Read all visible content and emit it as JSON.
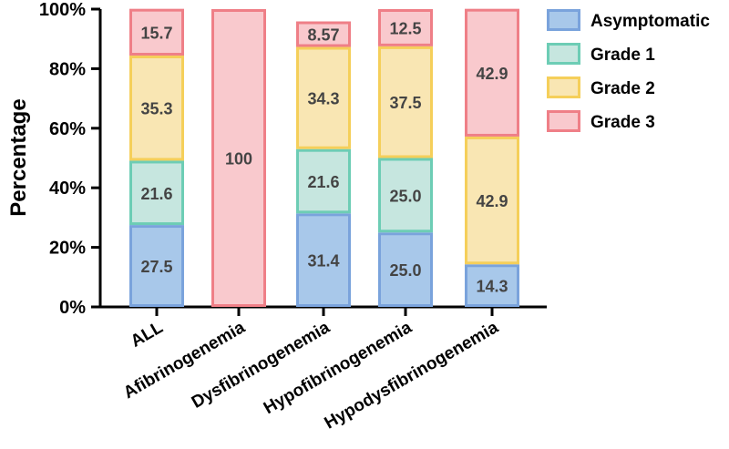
{
  "chart_data": {
    "type": "bar",
    "stacked": true,
    "ylabel": "Percentage",
    "xlabel": "",
    "ylim": [
      0,
      100
    ],
    "ytick_labels": [
      "0%",
      "20%",
      "40%",
      "60%",
      "80%",
      "100%"
    ],
    "categories": [
      "ALL",
      "Afibrinogenemia",
      "Dysfibrinogenemia",
      "Hypofibrinogenemia",
      "Hypodysfibrinogenemia"
    ],
    "series": [
      {
        "name": "Asymptomatic",
        "fill": "#a8c8ea",
        "stroke": "#7aa3dc",
        "values": [
          27.5,
          0,
          31.4,
          25.0,
          14.3
        ],
        "labels": [
          "27.5",
          "",
          "31.4",
          "25.0",
          "14.3"
        ]
      },
      {
        "name": "Grade 1",
        "fill": "#c6e6df",
        "stroke": "#6dcdb5",
        "values": [
          21.6,
          0,
          21.6,
          25.0,
          0
        ],
        "labels": [
          "21.6",
          "",
          "21.6",
          "25.0",
          ""
        ]
      },
      {
        "name": "Grade 2",
        "fill": "#f9e6b3",
        "stroke": "#f5cf5a",
        "values": [
          35.3,
          0,
          34.3,
          37.5,
          42.9
        ],
        "labels": [
          "35.3",
          "",
          "34.3",
          "37.5",
          "42.9"
        ]
      },
      {
        "name": "Grade 3",
        "fill": "#f9c9cd",
        "stroke": "#ef7f87",
        "values": [
          15.7,
          100,
          8.57,
          12.5,
          42.9
        ],
        "labels": [
          "15.7",
          "100",
          "8.57",
          "12.5",
          "42.9"
        ]
      }
    ],
    "legend_position": "top-right",
    "grid": false
  }
}
